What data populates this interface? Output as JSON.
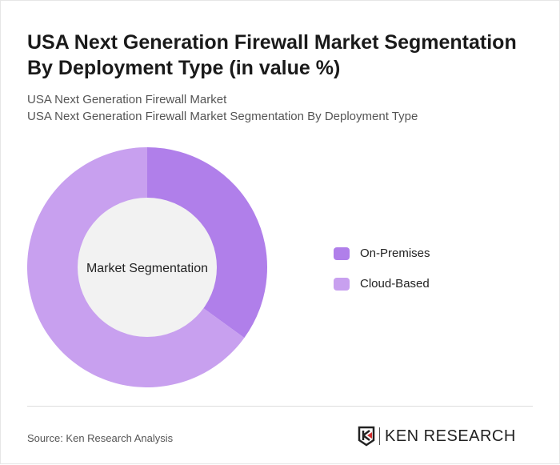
{
  "header": {
    "title": "USA Next Generation Firewall Market Segmentation By Deployment Type (in value %)",
    "subtitle1": "USA Next Generation Firewall Market",
    "subtitle2": "USA Next Generation Firewall Market Segmentation By Deployment Type"
  },
  "chart_data": {
    "type": "pie",
    "donut": true,
    "center_label": "Market Segmentation",
    "categories": [
      "On-Premises",
      "Cloud-Based"
    ],
    "values": [
      35,
      65
    ],
    "colors": [
      "#b07fea",
      "#c8a0ef"
    ],
    "legend": "right"
  },
  "footer": {
    "source": "Source: Ken Research Analysis",
    "logo_text": "KEN RESEARCH"
  }
}
